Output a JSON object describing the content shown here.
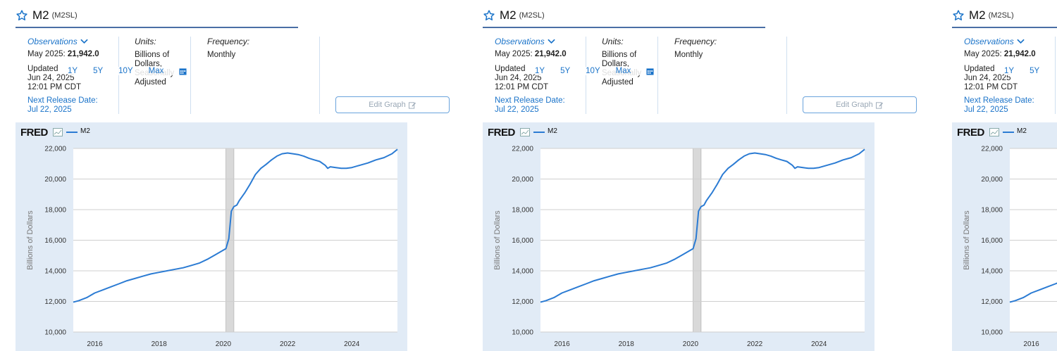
{
  "series": {
    "title": "M2",
    "id": "(M2SL)",
    "observations_label": "Observations",
    "obs_date": "May 2025:",
    "obs_value": "21,942.0",
    "updated_lines": [
      "Updated",
      "Jun 24, 2025",
      "12:01 PM CDT"
    ],
    "next_release_label": "Next Release Date:",
    "next_release_date": "Jul 22, 2025",
    "units_label": "Units:",
    "units_lines": [
      "Billions of",
      "Dollars,",
      "Seasonally",
      "Adjusted"
    ],
    "frequency_label": "Frequency:",
    "frequency_value": "Monthly"
  },
  "range_buttons": [
    "1Y",
    "5Y",
    "10Y",
    "Max"
  ],
  "edit_graph_label": "Edit Graph",
  "chart_brand": "FRED",
  "colors": {
    "line": "#2b7bd3",
    "link": "#1a73c9",
    "chart_bg": "#e1ebf6",
    "recession": "#d9d9d9"
  },
  "chart_data": {
    "type": "line",
    "ylabel": "Billions of Dollars",
    "ylim": [
      10000,
      22000
    ],
    "yticks": [
      10000,
      12000,
      14000,
      16000,
      18000,
      20000,
      22000
    ],
    "ytick_labels": [
      "10,000",
      "12,000",
      "14,000",
      "16,000",
      "18,000",
      "20,000",
      "22,000"
    ],
    "xlim": [
      2015.33,
      2025.42
    ],
    "xticks": [
      2016,
      2018,
      2020,
      2022,
      2024
    ],
    "xtick_labels": [
      "2016",
      "2018",
      "2020",
      "2022",
      "2024"
    ],
    "legend": "M2",
    "recession": [
      2020.08,
      2020.33
    ],
    "grid": "horizontal",
    "series": [
      {
        "name": "M2",
        "x": [
          2015.33,
          2015.5,
          2015.75,
          2016.0,
          2016.25,
          2016.5,
          2016.75,
          2017.0,
          2017.25,
          2017.5,
          2017.75,
          2018.0,
          2018.25,
          2018.5,
          2018.75,
          2019.0,
          2019.25,
          2019.5,
          2019.75,
          2020.0,
          2020.08,
          2020.17,
          2020.25,
          2020.33,
          2020.42,
          2020.5,
          2020.67,
          2020.83,
          2021.0,
          2021.17,
          2021.33,
          2021.5,
          2021.67,
          2021.83,
          2022.0,
          2022.17,
          2022.33,
          2022.5,
          2022.67,
          2022.83,
          2023.0,
          2023.17,
          2023.25,
          2023.33,
          2023.5,
          2023.67,
          2023.83,
          2024.0,
          2024.25,
          2024.5,
          2024.75,
          2025.0,
          2025.25,
          2025.42
        ],
        "y": [
          11950,
          12050,
          12250,
          12550,
          12750,
          12950,
          13150,
          13350,
          13500,
          13650,
          13800,
          13900,
          14000,
          14100,
          14200,
          14350,
          14500,
          14750,
          15050,
          15350,
          15450,
          16100,
          17900,
          18200,
          18300,
          18600,
          19100,
          19650,
          20300,
          20700,
          20950,
          21250,
          21500,
          21650,
          21700,
          21650,
          21600,
          21500,
          21350,
          21250,
          21150,
          20900,
          20700,
          20800,
          20750,
          20700,
          20700,
          20750,
          20900,
          21050,
          21250,
          21400,
          21650,
          21942
        ]
      }
    ]
  }
}
